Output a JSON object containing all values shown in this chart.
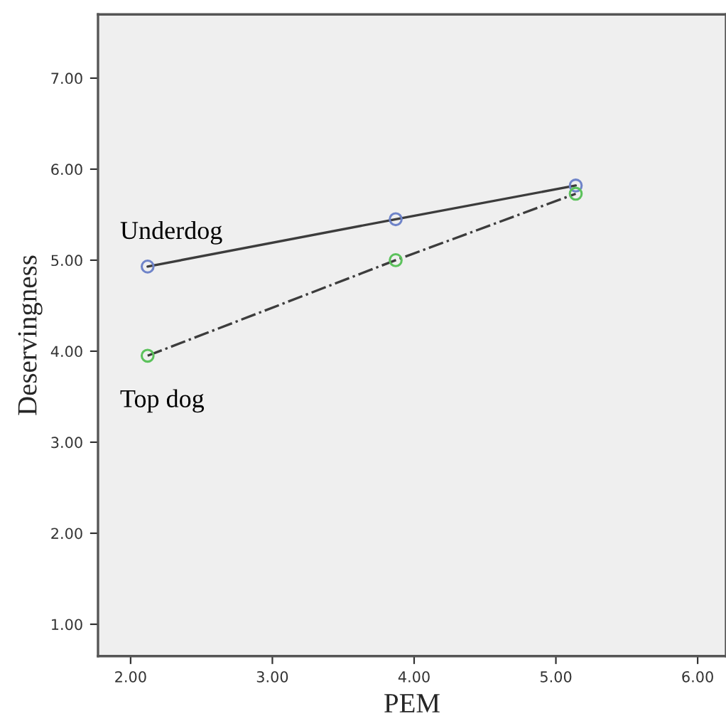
{
  "chart_data": {
    "type": "line",
    "xlabel": "PEM",
    "ylabel": "Deservingness",
    "series": [
      {
        "name": "Underdog",
        "color": "#6f84c9",
        "line_style": "solid",
        "x": [
          2.12,
          3.87,
          5.14
        ],
        "values": [
          4.93,
          5.45,
          5.82
        ]
      },
      {
        "name": "Top dog",
        "color": "#5cc25c",
        "line_style": "dashdot",
        "x": [
          2.12,
          3.87,
          5.14
        ],
        "values": [
          3.95,
          5.0,
          5.73
        ]
      }
    ],
    "marker": "circle",
    "grid": false,
    "legend": false,
    "xlim": [
      1.77,
      6.2
    ],
    "ylim": [
      0.65,
      7.7
    ],
    "xticks": [
      {
        "value": 2,
        "label": "2.00"
      },
      {
        "value": 3,
        "label": "3.00"
      },
      {
        "value": 4,
        "label": "4.00"
      },
      {
        "value": 5,
        "label": "5.00"
      },
      {
        "value": 6,
        "label": "6.00"
      }
    ],
    "yticks": [
      {
        "value": 1,
        "label": "1.00"
      },
      {
        "value": 2,
        "label": "2.00"
      },
      {
        "value": 3,
        "label": "3.00"
      },
      {
        "value": 4,
        "label": "4.00"
      },
      {
        "value": 5,
        "label": "5.00"
      },
      {
        "value": 6,
        "label": "6.00"
      },
      {
        "value": 7,
        "label": "7.00"
      }
    ]
  }
}
